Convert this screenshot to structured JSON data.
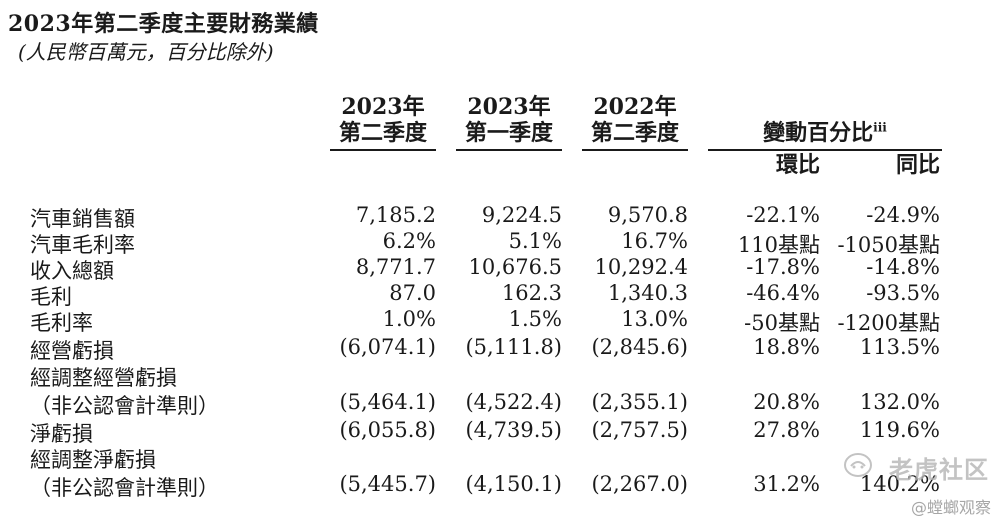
{
  "title": "2023年第二季度主要財務業績",
  "subtitle": "(人民幣百萬元，百分比除外)",
  "headers": {
    "col1_line1": "2023年",
    "col1_line2": "第二季度",
    "col2_line1": "2023年",
    "col2_line2": "第一季度",
    "col3_line1": "2022年",
    "col3_line2": "第二季度",
    "change_title": "變動百分比",
    "change_sup": "iii",
    "qoq": "環比",
    "yoy": "同比"
  },
  "rows": [
    {
      "label": "汽車銷售額",
      "c1": "7,185.2",
      "c2": "9,224.5",
      "c3": "9,570.8",
      "qoq": "-22.1%",
      "yoy": "-24.9%"
    },
    {
      "label": "汽車毛利率",
      "c1": "6.2%",
      "c2": "5.1%",
      "c3": "16.7%",
      "qoq": "110基點",
      "yoy": "-1050基點"
    },
    {
      "label": "收入總額",
      "c1": "8,771.7",
      "c2": "10,676.5",
      "c3": "10,292.4",
      "qoq": "-17.8%",
      "yoy": "-14.8%"
    },
    {
      "label": "毛利",
      "c1": "87.0",
      "c2": "162.3",
      "c3": "1,340.3",
      "qoq": "-46.4%",
      "yoy": "-93.5%"
    },
    {
      "label": "毛利率",
      "c1": "1.0%",
      "c2": "1.5%",
      "c3": "13.0%",
      "qoq": "-50基點",
      "yoy": "-1200基點"
    },
    {
      "label": "經營虧損",
      "c1": "(6,074.1)",
      "c2": "(5,111.8)",
      "c3": "(2,845.6)",
      "qoq": "18.8%",
      "yoy": "113.5%"
    },
    {
      "label": "經調整經營虧損",
      "c1": "",
      "c2": "",
      "c3": "",
      "qoq": "",
      "yoy": ""
    },
    {
      "label": "（非公認會計準則）",
      "c1": "(5,464.1)",
      "c2": "(4,522.4)",
      "c3": "(2,355.1)",
      "qoq": "20.8%",
      "yoy": "132.0%"
    },
    {
      "label": "淨虧損",
      "c1": "(6,055.8)",
      "c2": "(4,739.5)",
      "c3": "(2,757.5)",
      "qoq": "27.8%",
      "yoy": "119.6%"
    },
    {
      "label": "經調整淨虧損",
      "c1": "",
      "c2": "",
      "c3": "",
      "qoq": "",
      "yoy": ""
    },
    {
      "label": "（非公認會計準則）",
      "c1": "(5,445.7)",
      "c2": "(4,150.1)",
      "c3": "(2,267.0)",
      "qoq": "31.2%",
      "yoy": "140.2%"
    }
  ],
  "watermark": {
    "main": "老虎社区",
    "sub": "@螳螂观察"
  }
}
